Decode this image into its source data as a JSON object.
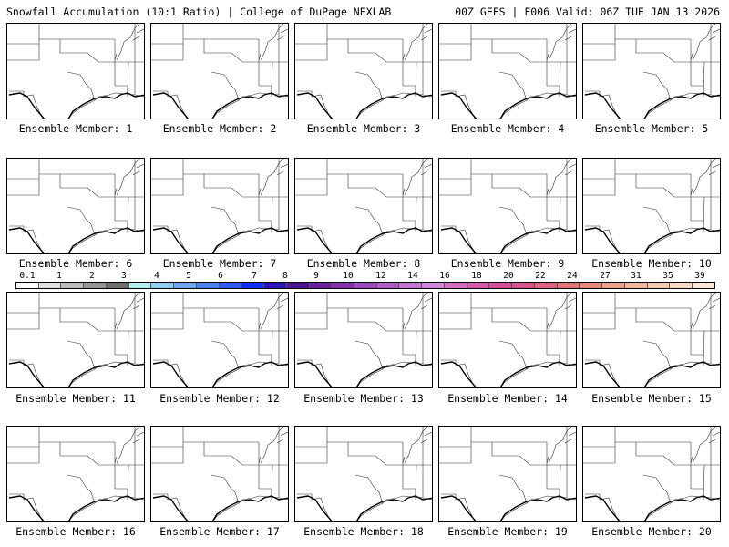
{
  "header": {
    "title_left": "Snowfall Accumulation (10:1 Ratio) | College of DuPage NEXLAB",
    "title_right": "00Z GEFS | F006 Valid: 06Z TUE JAN 13 2026"
  },
  "panels": [
    {
      "label": "Ensemble Member: 1"
    },
    {
      "label": "Ensemble Member: 2"
    },
    {
      "label": "Ensemble Member: 3"
    },
    {
      "label": "Ensemble Member: 4"
    },
    {
      "label": "Ensemble Member: 5"
    },
    {
      "label": "Ensemble Member: 6"
    },
    {
      "label": "Ensemble Member: 7"
    },
    {
      "label": "Ensemble Member: 8"
    },
    {
      "label": "Ensemble Member: 9"
    },
    {
      "label": "Ensemble Member: 10"
    },
    {
      "label": "Ensemble Member: 11"
    },
    {
      "label": "Ensemble Member: 12"
    },
    {
      "label": "Ensemble Member: 13"
    },
    {
      "label": "Ensemble Member: 14"
    },
    {
      "label": "Ensemble Member: 15"
    },
    {
      "label": "Ensemble Member: 16"
    },
    {
      "label": "Ensemble Member: 17"
    },
    {
      "label": "Ensemble Member: 18"
    },
    {
      "label": "Ensemble Member: 19"
    },
    {
      "label": "Ensemble Member: 20"
    }
  ],
  "colorbar": {
    "labels": [
      "0.1",
      "1",
      "2",
      "3",
      "4",
      "5",
      "6",
      "7",
      "8",
      "9",
      "10",
      "12",
      "14",
      "16",
      "18",
      "20",
      "22",
      "24",
      "27",
      "31",
      "35",
      "39"
    ],
    "colors": [
      "#ffffff",
      "#e0e0e0",
      "#bdbdbd",
      "#969696",
      "#6e6e6e",
      "#b4f0f0",
      "#8fd0f2",
      "#6ea8f0",
      "#4a82ee",
      "#2b5cef",
      "#0b2ff5",
      "#2a14b8",
      "#4a1594",
      "#6a1f9e",
      "#8530ad",
      "#9c48c0",
      "#b05ec8",
      "#c575d4",
      "#d286dc",
      "#d86fc4",
      "#d85aae",
      "#d4509a",
      "#d6548a",
      "#de6382",
      "#e37578",
      "#e88878",
      "#eea08a",
      "#f3b89e",
      "#f6cbb0",
      "#f8dac4",
      "#fbe8d8"
    ]
  }
}
